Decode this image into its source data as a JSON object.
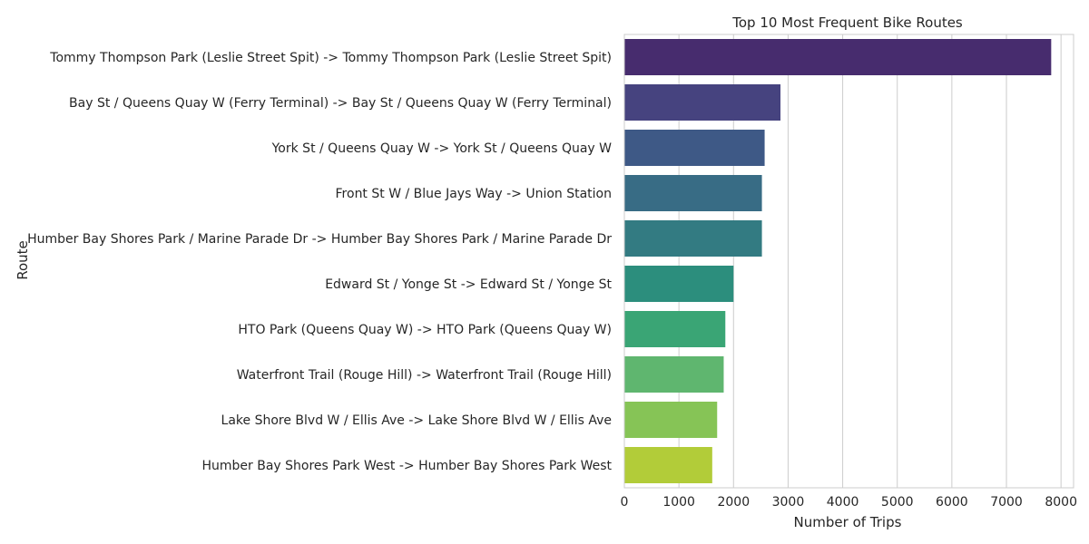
{
  "chart_data": {
    "type": "bar",
    "orientation": "horizontal",
    "title": "Top 10 Most Frequent Bike Routes",
    "xlabel": "Number of Trips",
    "ylabel": "Route",
    "xlim": [
      0,
      8230
    ],
    "xticks": [
      0,
      1000,
      2000,
      3000,
      4000,
      5000,
      6000,
      7000,
      8000
    ],
    "grid": "vertical",
    "categories": [
      "Tommy Thompson Park (Leslie Street Spit) -> Tommy Thompson Park (Leslie Street Spit)",
      "Bay St / Queens Quay W (Ferry Terminal) -> Bay St / Queens Quay W (Ferry Terminal)",
      "York St / Queens Quay W -> York St / Queens Quay W",
      "Front St W / Blue Jays Way -> Union Station",
      "Humber Bay Shores Park / Marine Parade Dr -> Humber Bay Shores Park / Marine Parade Dr",
      "Edward St / Yonge St -> Edward St / Yonge St",
      "HTO Park (Queens Quay W) -> HTO Park (Queens Quay W)",
      "Waterfront Trail (Rouge Hill) -> Waterfront Trail (Rouge Hill)",
      "Lake Shore Blvd W / Ellis Ave -> Lake Shore Blvd W / Ellis Ave",
      "Humber Bay Shores Park West -> Humber Bay Shores Park West"
    ],
    "values": [
      7820,
      2860,
      2570,
      2520,
      2520,
      2000,
      1850,
      1820,
      1700,
      1610
    ],
    "colors": [
      "#472c6e",
      "#46437f",
      "#3e5986",
      "#386c85",
      "#337b82",
      "#2c8e7d",
      "#3aa575",
      "#5fb66f",
      "#86c456",
      "#b2cc39"
    ]
  }
}
